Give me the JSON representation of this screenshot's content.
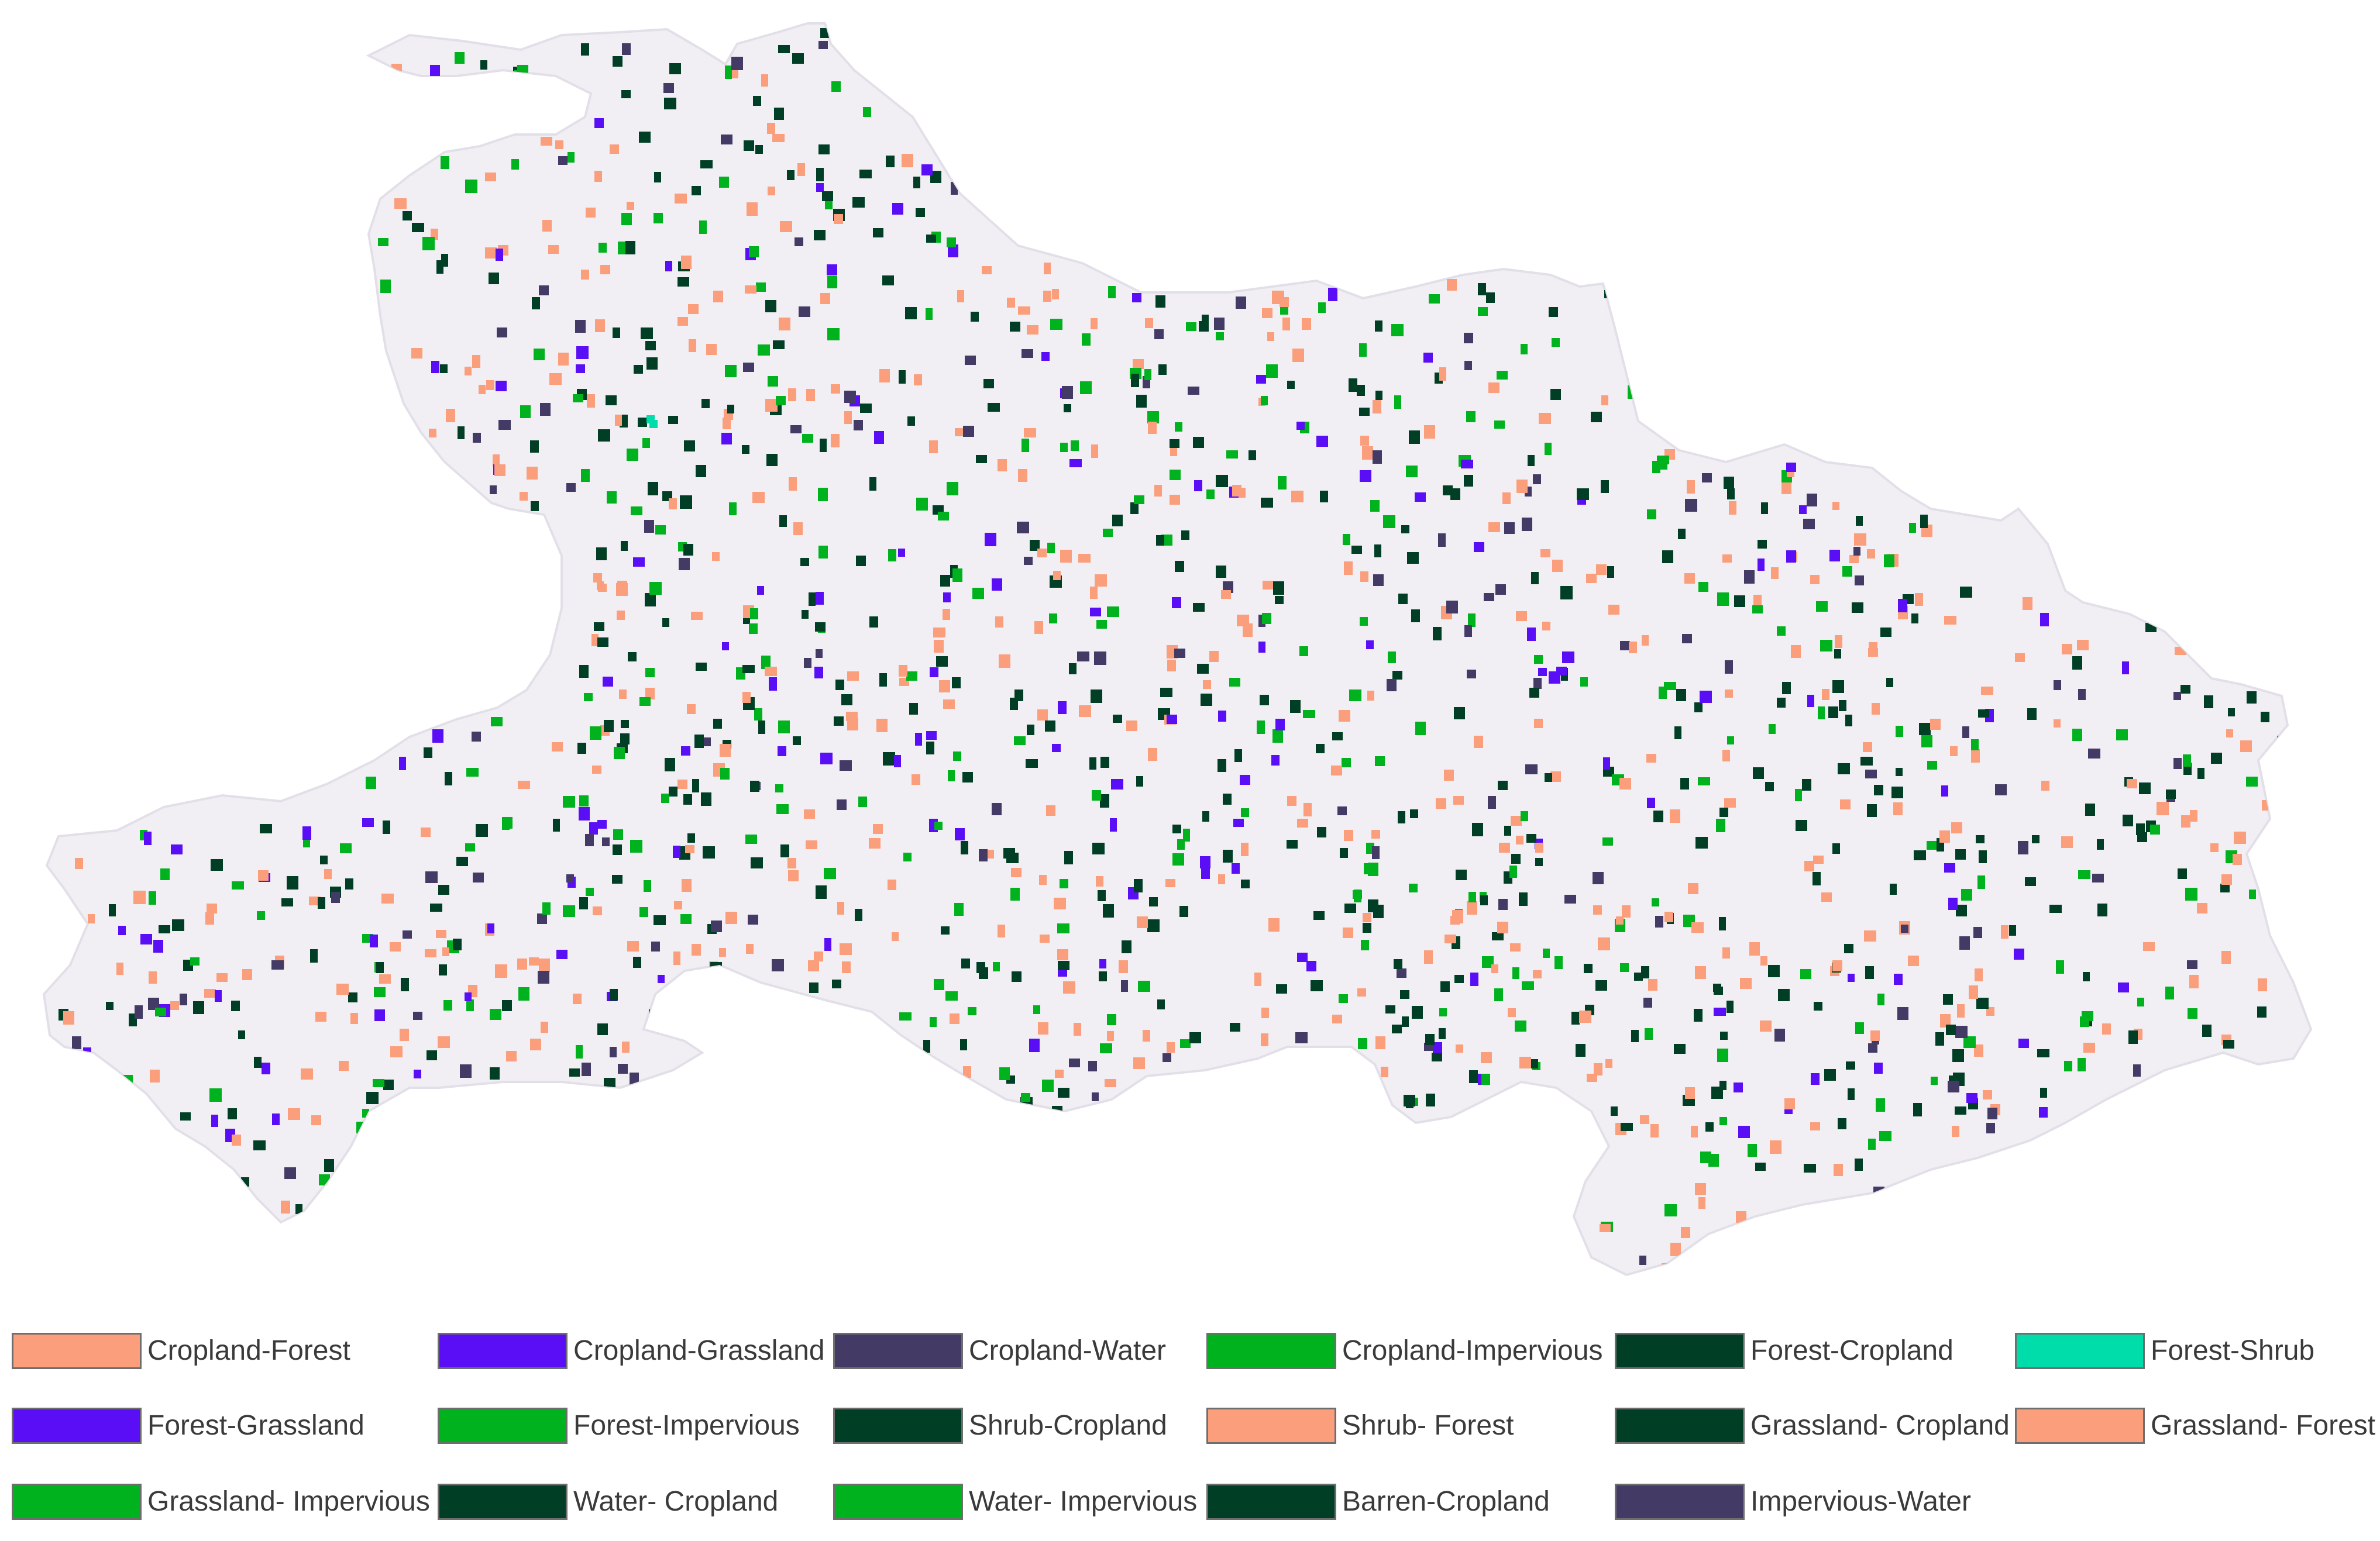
{
  "map": {
    "region_fill": "#f1eef4",
    "classes": {
      "cropland_forest": "#fa9e7b",
      "cropland_grassland": "#5a0ef5",
      "cropland_water": "#433a66",
      "cropland_impervious": "#00b21e",
      "forest_cropland": "#003f25",
      "forest_shrub": "#00ddaa"
    },
    "patch_mix": [
      "cropland_forest",
      "forest_cropland",
      "cropland_impervious",
      "cropland_forest",
      "forest_cropland",
      "cropland_water",
      "cropland_forest",
      "forest_cropland",
      "cropland_impervious",
      "cropland_grassland"
    ]
  },
  "legend": {
    "items": [
      {
        "label": "Cropland-Forest",
        "color": "#fa9e7b"
      },
      {
        "label": "Cropland-Grassland",
        "color": "#5a0ef5"
      },
      {
        "label": "Cropland-Water",
        "color": "#433a66"
      },
      {
        "label": "Cropland-Impervious",
        "color": "#00b21e"
      },
      {
        "label": "Forest-Cropland",
        "color": "#003f25"
      },
      {
        "label": "Forest-Shrub",
        "color": "#00ddaa"
      },
      {
        "label": "Forest-Grassland",
        "color": "#5a0ef5"
      },
      {
        "label": "Forest-Impervious",
        "color": "#00b21e"
      },
      {
        "label": "Shrub-Cropland",
        "color": "#003f25"
      },
      {
        "label": "Shrub- Forest",
        "color": "#fa9e7b"
      },
      {
        "label": "Grassland- Cropland",
        "color": "#003f25"
      },
      {
        "label": "Grassland- Forest",
        "color": "#fa9e7b"
      },
      {
        "label": "Grassland- Impervious",
        "color": "#00b21e"
      },
      {
        "label": "Water- Cropland",
        "color": "#003f25"
      },
      {
        "label": "Water- Impervious",
        "color": "#00b21e"
      },
      {
        "label": "Barren-Cropland",
        "color": "#003f25"
      },
      {
        "label": "Impervious-Water",
        "color": "#433a66"
      }
    ]
  }
}
